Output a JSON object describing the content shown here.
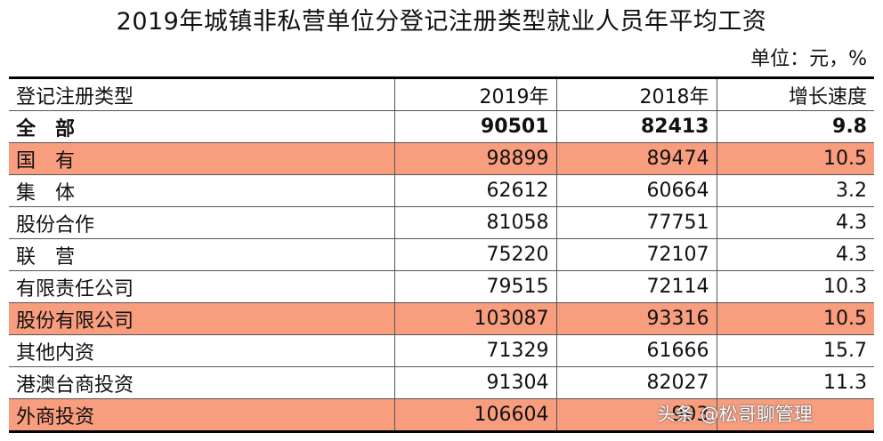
{
  "title": "2019年城镇非私营单位分登记注册类型就业人员年平均工资",
  "unit": "单位：元，%",
  "columns": [
    "登记注册类型",
    "2019年",
    "2018年",
    "增长速度"
  ],
  "rows": [
    {
      "name": "全　部",
      "y2019": "90501",
      "y2018": "82413",
      "growth": "9.8",
      "bold": true,
      "highlight": false
    },
    {
      "name": "国　有",
      "y2019": "98899",
      "y2018": "89474",
      "growth": "10.5",
      "bold": false,
      "highlight": true
    },
    {
      "name": "集　体",
      "y2019": "62612",
      "y2018": "60664",
      "growth": "3.2",
      "bold": false,
      "highlight": false
    },
    {
      "name": "股份合作",
      "y2019": "81058",
      "y2018": "77751",
      "growth": "4.3",
      "bold": false,
      "highlight": false
    },
    {
      "name": "联　营",
      "y2019": "75220",
      "y2018": "72107",
      "growth": "4.3",
      "bold": false,
      "highlight": false
    },
    {
      "name": "有限责任公司",
      "y2019": "79515",
      "y2018": "72114",
      "growth": "10.3",
      "bold": false,
      "highlight": false
    },
    {
      "name": "股份有限公司",
      "y2019": "103087",
      "y2018": "93316",
      "growth": "10.5",
      "bold": false,
      "highlight": true
    },
    {
      "name": "其他内资",
      "y2019": "71329",
      "y2018": "61666",
      "growth": "15.7",
      "bold": false,
      "highlight": false
    },
    {
      "name": "港澳台商投资",
      "y2019": "91304",
      "y2018": "82027",
      "growth": "11.3",
      "bold": false,
      "highlight": false
    },
    {
      "name": "外商投资",
      "y2019": "106604",
      "y2018": "993",
      "growth": "",
      "bold": false,
      "highlight": true
    }
  ],
  "highlight_color": "#f99d7f",
  "watermark": "头条 @松哥聊管理"
}
